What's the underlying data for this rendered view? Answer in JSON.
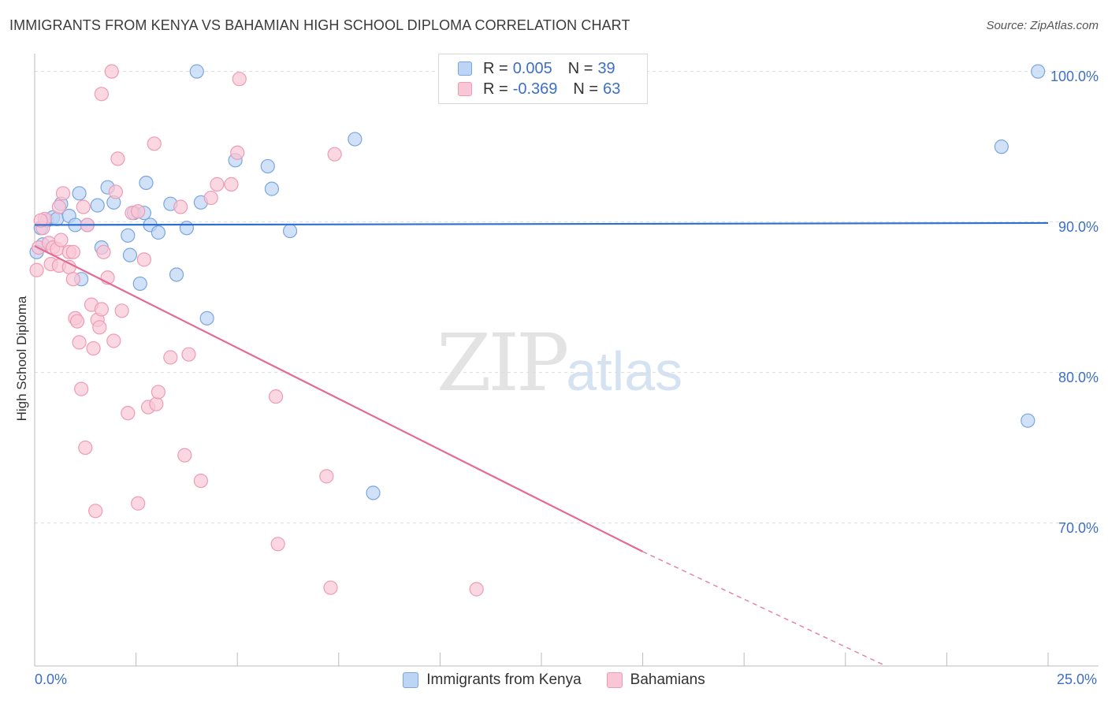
{
  "title": "IMMIGRANTS FROM KENYA VS BAHAMIAN HIGH SCHOOL DIPLOMA CORRELATION CHART",
  "source": "Source: ZipAtlas.com",
  "watermark": {
    "zip": "ZIP",
    "atlas": "atlas"
  },
  "colors": {
    "blue_fill": "#bcd4f5",
    "blue_stroke": "#7aa6de",
    "blue_line": "#2d6fd1",
    "pink_fill": "#f9c6d6",
    "pink_stroke": "#ee9bb6",
    "pink_line": "#e46a93",
    "tick_text": "#3d6fc4",
    "grid": "#dddddd"
  },
  "legend": {
    "rows": [
      {
        "r_label": "R =",
        "r_value": "0.005",
        "n_label": "N =",
        "n_value": "39"
      },
      {
        "r_label": "R =",
        "r_value": "-0.369",
        "n_label": "N =",
        "n_value": "63"
      }
    ]
  },
  "chart_data": {
    "type": "scatter",
    "title": "IMMIGRANTS FROM KENYA VS BAHAMIAN HIGH SCHOOL DIPLOMA CORRELATION CHART",
    "xlabel": "",
    "ylabel": "High School Diploma",
    "xlim": [
      0,
      25
    ],
    "ylim": [
      60.5,
      101.5
    ],
    "x_tick_labels": [
      "0.0%",
      "25.0%"
    ],
    "y_ticks": [
      70,
      80,
      90,
      100
    ],
    "y_tick_labels": [
      "70.0%",
      "80.0%",
      "90.0%",
      "100.0%"
    ],
    "grid": true,
    "legend_position": "top-center",
    "series": [
      {
        "name": "Immigrants from Kenya",
        "color": "blue",
        "trend": {
          "x": [
            0,
            25
          ],
          "y": [
            89.8,
            89.93
          ],
          "style": "solid"
        },
        "points": [
          [
            0.15,
            89.6
          ],
          [
            0.2,
            88.5
          ],
          [
            0.3,
            90.1
          ],
          [
            0.45,
            90.3
          ],
          [
            0.55,
            90.2
          ],
          [
            0.65,
            91.2
          ],
          [
            0.85,
            90.4
          ],
          [
            1.0,
            89.8
          ],
          [
            1.1,
            91.9
          ],
          [
            1.15,
            86.2
          ],
          [
            1.3,
            89.8
          ],
          [
            1.55,
            91.1
          ],
          [
            1.65,
            88.3
          ],
          [
            1.8,
            92.3
          ],
          [
            1.95,
            91.3
          ],
          [
            2.3,
            89.1
          ],
          [
            2.35,
            87.8
          ],
          [
            2.45,
            90.6
          ],
          [
            2.6,
            85.9
          ],
          [
            2.7,
            90.6
          ],
          [
            2.75,
            92.6
          ],
          [
            2.85,
            89.8
          ],
          [
            3.05,
            89.3
          ],
          [
            3.35,
            91.2
          ],
          [
            3.5,
            86.5
          ],
          [
            3.75,
            89.6
          ],
          [
            4.0,
            100.0
          ],
          [
            4.1,
            91.3
          ],
          [
            4.25,
            83.6
          ],
          [
            4.95,
            94.1
          ],
          [
            5.75,
            93.7
          ],
          [
            5.85,
            92.2
          ],
          [
            6.3,
            89.4
          ],
          [
            7.9,
            95.5
          ],
          [
            8.35,
            72.0
          ],
          [
            23.85,
            95.0
          ],
          [
            24.5,
            76.8
          ],
          [
            24.75,
            100.0
          ],
          [
            0.05,
            88.0
          ]
        ]
      },
      {
        "name": "Bahamians",
        "color": "pink",
        "trend": {
          "x": [
            0,
            15
          ],
          "y": [
            88.4,
            68.1
          ],
          "dash_x": [
            15,
            21
          ],
          "dash_y": [
            68.1,
            60.5
          ],
          "style": "solid-then-dashed"
        },
        "points": [
          [
            0.05,
            86.8
          ],
          [
            0.1,
            88.3
          ],
          [
            0.2,
            89.6
          ],
          [
            0.25,
            90.2
          ],
          [
            0.35,
            88.6
          ],
          [
            0.4,
            87.2
          ],
          [
            0.45,
            88.3
          ],
          [
            0.55,
            88.2
          ],
          [
            0.6,
            87.1
          ],
          [
            0.6,
            91.0
          ],
          [
            0.65,
            88.8
          ],
          [
            0.7,
            91.9
          ],
          [
            0.85,
            88.0
          ],
          [
            0.85,
            87.0
          ],
          [
            0.95,
            86.2
          ],
          [
            0.95,
            88.0
          ],
          [
            1.0,
            83.6
          ],
          [
            1.05,
            83.4
          ],
          [
            1.1,
            82.0
          ],
          [
            1.15,
            78.9
          ],
          [
            1.2,
            91.0
          ],
          [
            1.25,
            75.0
          ],
          [
            1.3,
            89.8
          ],
          [
            1.4,
            84.5
          ],
          [
            1.45,
            81.6
          ],
          [
            1.5,
            70.8
          ],
          [
            1.55,
            83.5
          ],
          [
            1.6,
            83.0
          ],
          [
            1.65,
            84.2
          ],
          [
            1.65,
            98.5
          ],
          [
            1.7,
            88.0
          ],
          [
            1.8,
            86.3
          ],
          [
            1.9,
            100.0
          ],
          [
            1.95,
            82.1
          ],
          [
            2.0,
            92.0
          ],
          [
            2.05,
            94.2
          ],
          [
            2.15,
            84.1
          ],
          [
            2.3,
            77.3
          ],
          [
            2.4,
            90.6
          ],
          [
            2.55,
            90.7
          ],
          [
            2.55,
            71.3
          ],
          [
            2.7,
            87.5
          ],
          [
            2.8,
            77.7
          ],
          [
            2.95,
            95.2
          ],
          [
            3.0,
            77.9
          ],
          [
            3.05,
            78.7
          ],
          [
            3.35,
            81.0
          ],
          [
            3.6,
            91.0
          ],
          [
            3.7,
            74.5
          ],
          [
            3.8,
            81.2
          ],
          [
            4.1,
            72.8
          ],
          [
            4.35,
            91.6
          ],
          [
            4.5,
            92.5
          ],
          [
            4.85,
            92.5
          ],
          [
            5.0,
            94.6
          ],
          [
            5.05,
            99.5
          ],
          [
            5.95,
            78.4
          ],
          [
            6.0,
            68.6
          ],
          [
            7.2,
            73.1
          ],
          [
            7.3,
            65.7
          ],
          [
            7.4,
            94.5
          ],
          [
            10.9,
            65.6
          ],
          [
            0.15,
            90.1
          ]
        ]
      }
    ]
  },
  "bottom_legend": [
    {
      "label": "Immigrants from Kenya"
    },
    {
      "label": "Bahamians"
    }
  ]
}
